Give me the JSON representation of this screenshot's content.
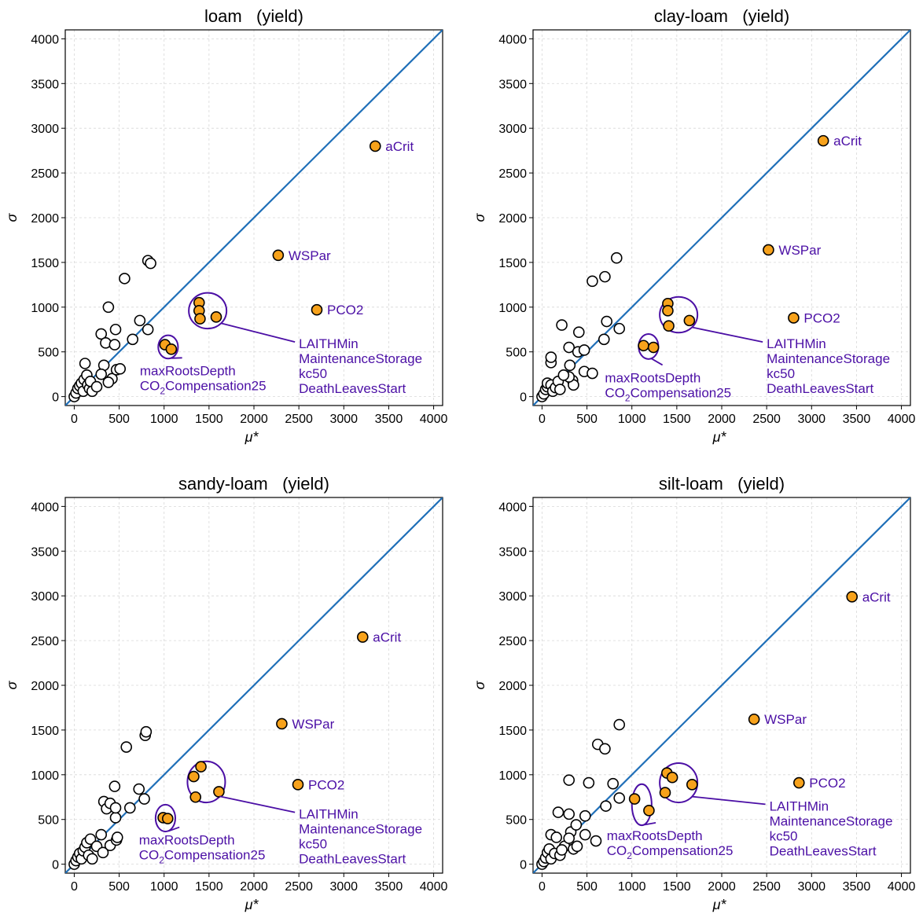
{
  "chart_data": [
    {
      "type": "scatter",
      "title": "loam   (yield)",
      "xlabel": "μ*",
      "ylabel": "σ",
      "xlim": [
        -100,
        4100
      ],
      "ylim": [
        -100,
        4100
      ],
      "xticks": [
        "0",
        "500",
        "1000",
        "1500",
        "2000",
        "2500",
        "3000",
        "3500",
        "4000"
      ],
      "yticks": [
        "0",
        "500",
        "1000",
        "1500",
        "2000",
        "2500",
        "3000",
        "3500",
        "4000"
      ],
      "grid": true,
      "reference_line": "y = x",
      "colors": {
        "highlight": "#f7a21b",
        "diagonal": "#1f6fb8",
        "annotation": "#4b0fa5"
      },
      "points": [
        [
          0,
          0
        ],
        [
          20,
          40
        ],
        [
          40,
          90
        ],
        [
          60,
          120
        ],
        [
          80,
          150
        ],
        [
          100,
          60
        ],
        [
          110,
          190
        ],
        [
          140,
          240
        ],
        [
          150,
          130
        ],
        [
          170,
          90
        ],
        [
          180,
          170
        ],
        [
          200,
          60
        ],
        [
          120,
          370
        ],
        [
          300,
          700
        ],
        [
          350,
          600
        ],
        [
          380,
          1000
        ],
        [
          330,
          350
        ],
        [
          420,
          200
        ],
        [
          450,
          580
        ],
        [
          460,
          750
        ],
        [
          470,
          300
        ],
        [
          510,
          310
        ],
        [
          560,
          1320
        ],
        [
          650,
          640
        ],
        [
          730,
          850
        ],
        [
          820,
          1520
        ],
        [
          850,
          1490
        ],
        [
          820,
          750
        ],
        [
          300,
          250
        ],
        [
          380,
          160
        ],
        [
          250,
          110
        ]
      ],
      "labeled_points": [
        {
          "name": "aCrit",
          "x": 3350,
          "y": 2800
        },
        {
          "name": "WSPar",
          "x": 2270,
          "y": 1580
        },
        {
          "name": "PCO2",
          "x": 2700,
          "y": 970
        }
      ],
      "groups": [
        {
          "labels": [
            "LAITHMin",
            "MaintenanceStorage",
            "kc50",
            "DeathLeavesStart"
          ],
          "points": [
            [
              1390,
              1050
            ],
            [
              1390,
              960
            ],
            [
              1400,
              870
            ],
            [
              1580,
              890
            ]
          ]
        },
        {
          "labels": [
            "maxRootsDepth",
            "CO2Compensation25"
          ],
          "points": [
            [
              1010,
              580
            ],
            [
              1080,
              530
            ]
          ]
        }
      ]
    },
    {
      "type": "scatter",
      "title": "clay-loam   (yield)",
      "xlabel": "μ*",
      "ylabel": "σ",
      "xlim": [
        -100,
        4100
      ],
      "ylim": [
        -100,
        4100
      ],
      "xticks": [
        "0",
        "500",
        "1000",
        "1500",
        "2000",
        "2500",
        "3000",
        "3500",
        "4000"
      ],
      "yticks": [
        "0",
        "500",
        "1000",
        "1500",
        "2000",
        "2500",
        "3000",
        "3500",
        "4000"
      ],
      "grid": true,
      "reference_line": "y = x",
      "colors": {
        "highlight": "#f7a21b",
        "diagonal": "#1f6fb8",
        "annotation": "#4b0fa5"
      },
      "points": [
        [
          0,
          0
        ],
        [
          20,
          30
        ],
        [
          40,
          80
        ],
        [
          60,
          110
        ],
        [
          60,
          150
        ],
        [
          100,
          130
        ],
        [
          120,
          60
        ],
        [
          150,
          100
        ],
        [
          180,
          170
        ],
        [
          200,
          80
        ],
        [
          100,
          380
        ],
        [
          100,
          440
        ],
        [
          220,
          800
        ],
        [
          300,
          550
        ],
        [
          310,
          350
        ],
        [
          340,
          180
        ],
        [
          350,
          130
        ],
        [
          400,
          500
        ],
        [
          410,
          720
        ],
        [
          470,
          520
        ],
        [
          470,
          280
        ],
        [
          560,
          260
        ],
        [
          560,
          1290
        ],
        [
          700,
          1340
        ],
        [
          690,
          640
        ],
        [
          720,
          840
        ],
        [
          830,
          1550
        ],
        [
          860,
          760
        ],
        [
          300,
          220
        ],
        [
          240,
          240
        ]
      ],
      "labeled_points": [
        {
          "name": "aCrit",
          "x": 3130,
          "y": 2860
        },
        {
          "name": "WSPar",
          "x": 2520,
          "y": 1640
        },
        {
          "name": "PCO2",
          "x": 2800,
          "y": 880
        }
      ],
      "groups": [
        {
          "labels": [
            "LAITHMin",
            "MaintenanceStorage",
            "kc50",
            "DeathLeavesStart"
          ],
          "points": [
            [
              1400,
              1040
            ],
            [
              1400,
              960
            ],
            [
              1410,
              790
            ],
            [
              1640,
              850
            ]
          ]
        },
        {
          "labels": [
            "maxRootsDepth",
            "CO2Compensation25"
          ],
          "points": [
            [
              1130,
              570
            ],
            [
              1240,
              550
            ]
          ]
        }
      ]
    },
    {
      "type": "scatter",
      "title": "sandy-loam   (yield)",
      "xlabel": "μ*",
      "ylabel": "σ",
      "xlim": [
        -100,
        4100
      ],
      "ylim": [
        -100,
        4100
      ],
      "xticks": [
        "0",
        "500",
        "1000",
        "1500",
        "2000",
        "2500",
        "3000",
        "3500",
        "4000"
      ],
      "yticks": [
        "0",
        "500",
        "1000",
        "1500",
        "2000",
        "2500",
        "3000",
        "3500",
        "4000"
      ],
      "grid": true,
      "reference_line": "y = x",
      "colors": {
        "highlight": "#f7a21b",
        "diagonal": "#1f6fb8",
        "annotation": "#4b0fa5"
      },
      "points": [
        [
          0,
          0
        ],
        [
          20,
          40
        ],
        [
          40,
          80
        ],
        [
          60,
          120
        ],
        [
          80,
          60
        ],
        [
          100,
          150
        ],
        [
          120,
          190
        ],
        [
          140,
          240
        ],
        [
          160,
          100
        ],
        [
          180,
          280
        ],
        [
          200,
          60
        ],
        [
          250,
          200
        ],
        [
          300,
          330
        ],
        [
          320,
          130
        ],
        [
          330,
          700
        ],
        [
          360,
          620
        ],
        [
          400,
          680
        ],
        [
          400,
          210
        ],
        [
          450,
          870
        ],
        [
          460,
          520
        ],
        [
          460,
          630
        ],
        [
          470,
          270
        ],
        [
          480,
          300
        ],
        [
          580,
          1310
        ],
        [
          620,
          630
        ],
        [
          720,
          840
        ],
        [
          780,
          730
        ],
        [
          790,
          1440
        ],
        [
          800,
          1480
        ]
      ],
      "labeled_points": [
        {
          "name": "aCrit",
          "x": 3210,
          "y": 2540
        },
        {
          "name": "WSPar",
          "x": 2310,
          "y": 1570
        },
        {
          "name": "PCO2",
          "x": 2490,
          "y": 890
        }
      ],
      "groups": [
        {
          "labels": [
            "LAITHMin",
            "MaintenanceStorage",
            "kc50",
            "DeathLeavesStart"
          ],
          "points": [
            [
              1410,
              1090
            ],
            [
              1330,
              980
            ],
            [
              1350,
              750
            ],
            [
              1610,
              810
            ]
          ]
        },
        {
          "labels": [
            "maxRootsDepth",
            "CO2Compensation25"
          ],
          "points": [
            [
              990,
              520
            ],
            [
              1040,
              510
            ]
          ]
        }
      ]
    },
    {
      "type": "scatter",
      "title": "silt-loam   (yield)",
      "xlabel": "μ*",
      "ylabel": "σ",
      "xlim": [
        -100,
        4100
      ],
      "ylim": [
        -100,
        4100
      ],
      "xticks": [
        "0",
        "500",
        "1000",
        "1500",
        "2000",
        "2500",
        "3000",
        "3500",
        "4000"
      ],
      "yticks": [
        "0",
        "500",
        "1000",
        "1500",
        "2000",
        "2500",
        "3000",
        "3500",
        "4000"
      ],
      "grid": true,
      "reference_line": "y = x",
      "colors": {
        "highlight": "#f7a21b",
        "diagonal": "#1f6fb8",
        "annotation": "#4b0fa5"
      },
      "points": [
        [
          0,
          0
        ],
        [
          20,
          30
        ],
        [
          40,
          70
        ],
        [
          60,
          130
        ],
        [
          80,
          170
        ],
        [
          100,
          60
        ],
        [
          100,
          330
        ],
        [
          140,
          120
        ],
        [
          160,
          300
        ],
        [
          180,
          580
        ],
        [
          200,
          100
        ],
        [
          250,
          200
        ],
        [
          300,
          940
        ],
        [
          300,
          560
        ],
        [
          320,
          360
        ],
        [
          350,
          170
        ],
        [
          380,
          440
        ],
        [
          390,
          200
        ],
        [
          480,
          540
        ],
        [
          480,
          330
        ],
        [
          520,
          910
        ],
        [
          600,
          260
        ],
        [
          620,
          1340
        ],
        [
          700,
          1290
        ],
        [
          710,
          650
        ],
        [
          790,
          900
        ],
        [
          860,
          1560
        ],
        [
          860,
          740
        ],
        [
          300,
          290
        ],
        [
          220,
          160
        ]
      ],
      "labeled_points": [
        {
          "name": "aCrit",
          "x": 3450,
          "y": 2990
        },
        {
          "name": "WSPar",
          "x": 2360,
          "y": 1620
        },
        {
          "name": "PCO2",
          "x": 2860,
          "y": 910
        }
      ],
      "groups": [
        {
          "labels": [
            "LAITHMin",
            "MaintenanceStorage",
            "kc50",
            "DeathLeavesStart"
          ],
          "points": [
            [
              1390,
              1020
            ],
            [
              1450,
              970
            ],
            [
              1370,
              800
            ],
            [
              1670,
              890
            ]
          ]
        },
        {
          "labels": [
            "maxRootsDepth",
            "CO2Compensation25"
          ],
          "points": [
            [
              1030,
              730
            ],
            [
              1190,
              600
            ]
          ]
        }
      ]
    }
  ]
}
